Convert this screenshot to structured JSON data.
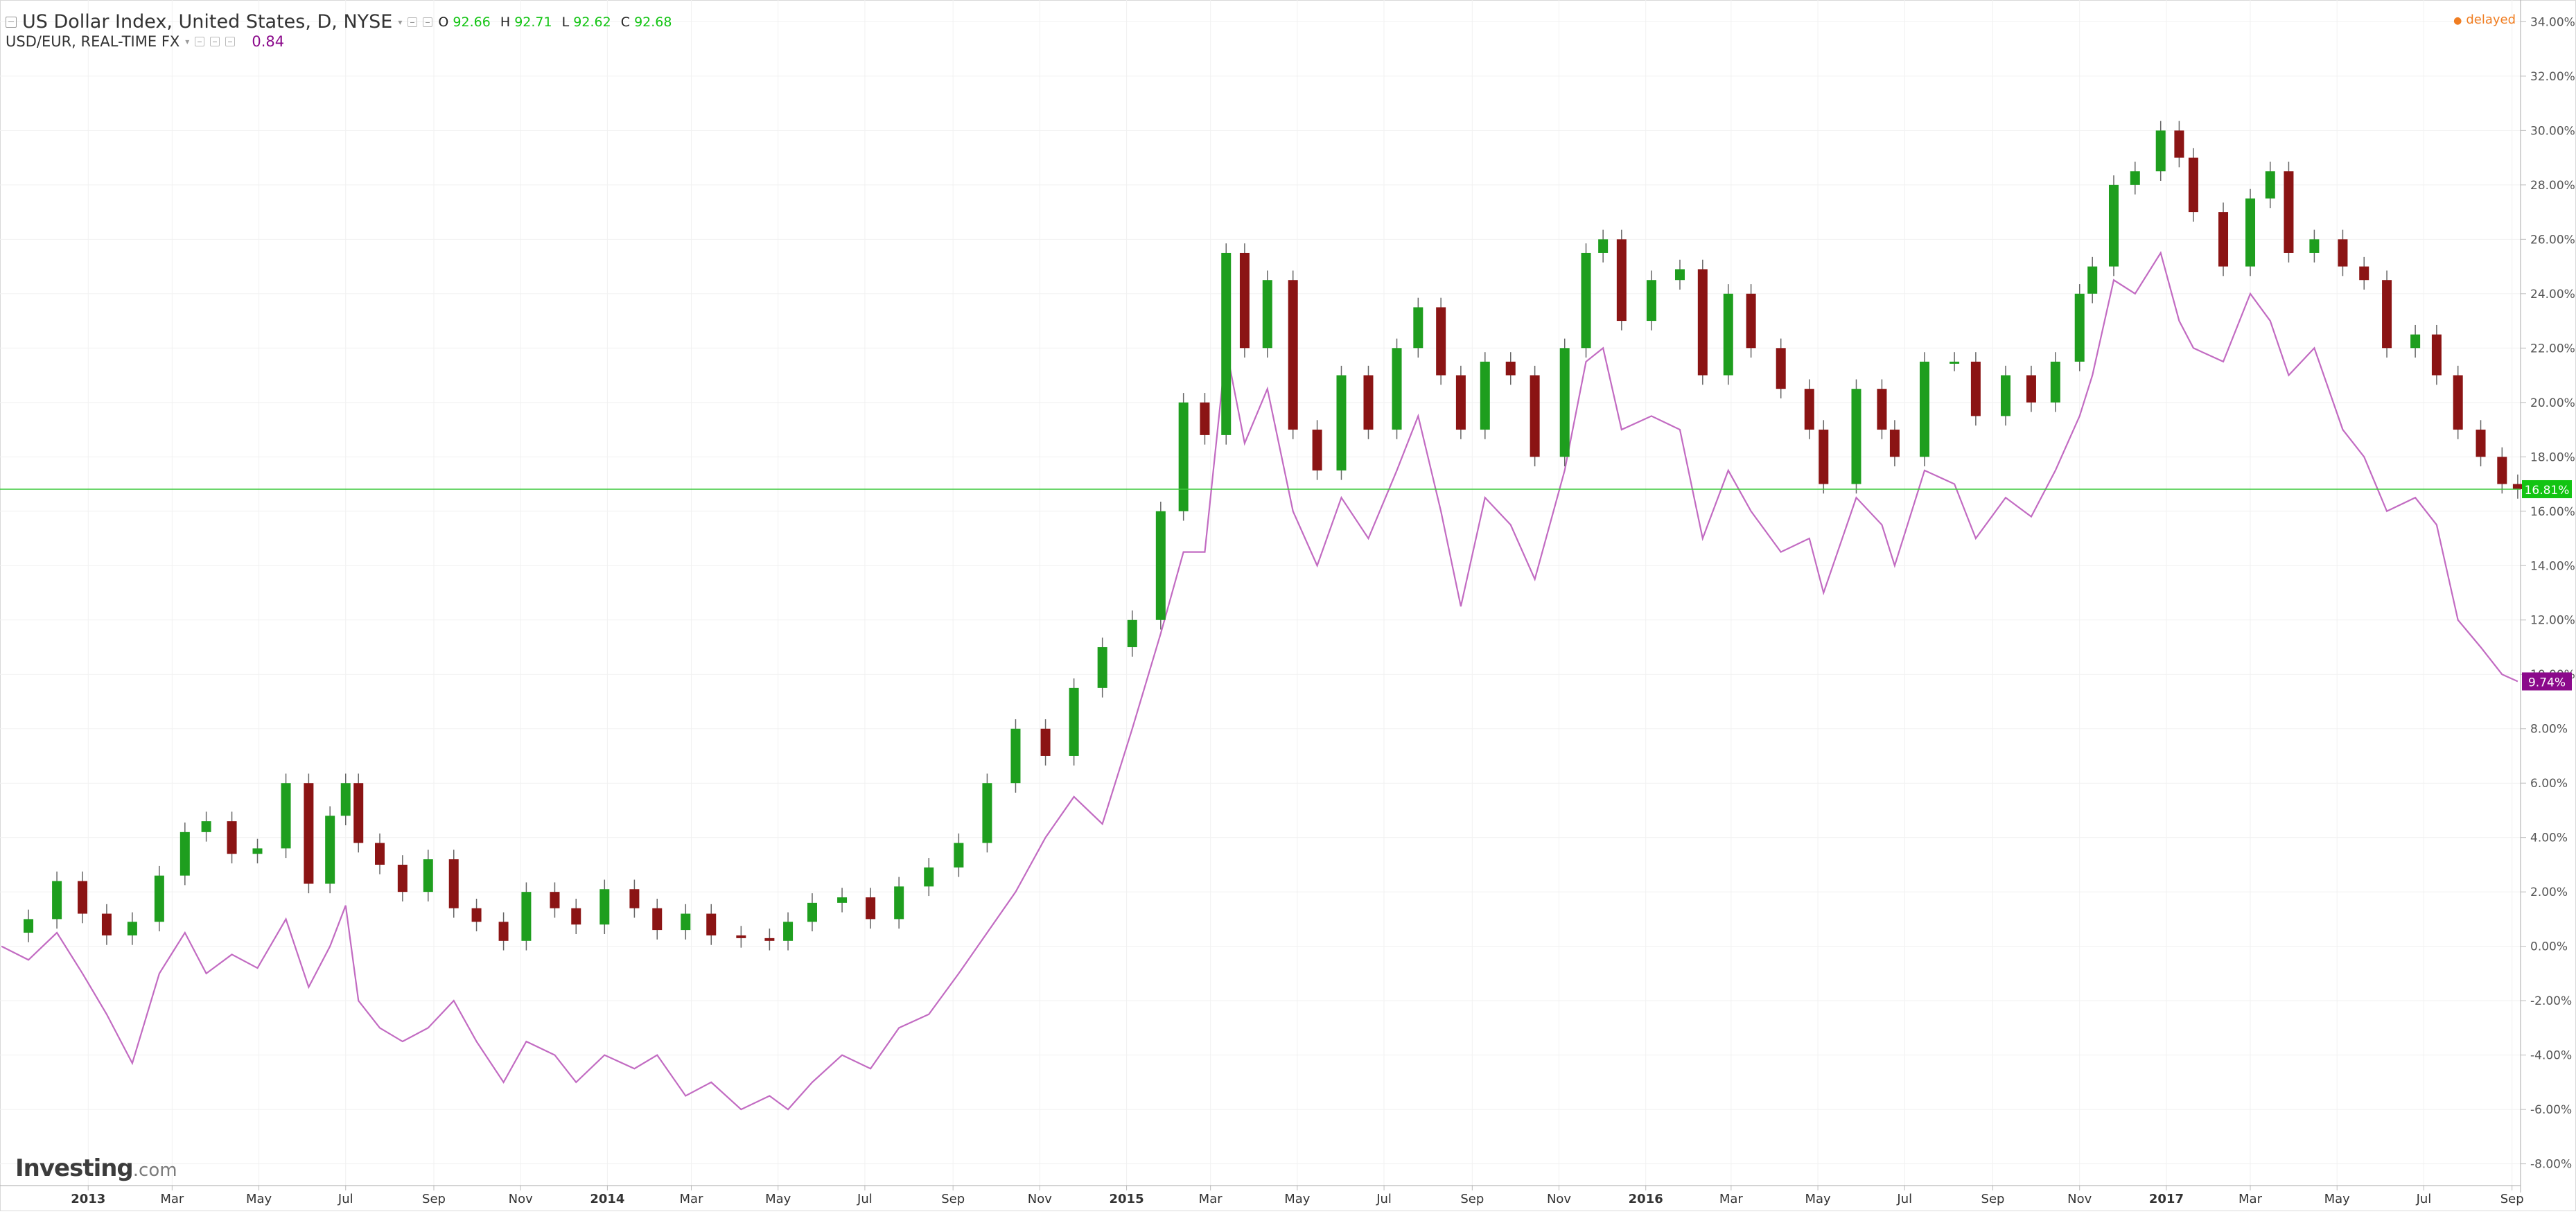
{
  "legend": {
    "main_title": "US Dollar Index, United States, D, NYSE",
    "ohlc": [
      {
        "k": "O",
        "v": "92.66"
      },
      {
        "k": "H",
        "v": "92.71"
      },
      {
        "k": "L",
        "v": "92.62"
      },
      {
        "k": "C",
        "v": "92.68"
      }
    ],
    "compare_title": "USD/EUR, REAL-TIME FX",
    "compare_value": "0.84"
  },
  "status": "delayed",
  "logo": {
    "name": "Investing",
    "suffix": ".com"
  },
  "colors": {
    "up": "#1e9e1e",
    "down": "#8b1414",
    "compare": "#c26bc2",
    "last_price_line": "#3ac83a",
    "last_price_badge": "#12c412",
    "compare_badge": "#8b0a8b"
  },
  "chart_data": {
    "type": "line",
    "title": "US Dollar Index, United States, D, NYSE",
    "x_type": "date",
    "xlim": [
      "2012-10-31",
      "2017-09-07"
    ],
    "ylim": [
      -8.8,
      34.8
    ],
    "y_unit": "%",
    "grid": true,
    "legend_position": "top-left",
    "x_ticks": [
      {
        "label": "2013",
        "date": "2013-01-01",
        "bold": true
      },
      {
        "label": "Mar",
        "date": "2013-03-01"
      },
      {
        "label": "May",
        "date": "2013-05-01"
      },
      {
        "label": "Jul",
        "date": "2013-07-01"
      },
      {
        "label": "Sep",
        "date": "2013-09-01"
      },
      {
        "label": "Nov",
        "date": "2013-11-01"
      },
      {
        "label": "2014",
        "date": "2014-01-01",
        "bold": true
      },
      {
        "label": "Mar",
        "date": "2014-03-01"
      },
      {
        "label": "May",
        "date": "2014-05-01"
      },
      {
        "label": "Jul",
        "date": "2014-07-01"
      },
      {
        "label": "Sep",
        "date": "2014-09-01"
      },
      {
        "label": "Nov",
        "date": "2014-11-01"
      },
      {
        "label": "2015",
        "date": "2015-01-01",
        "bold": true
      },
      {
        "label": "Mar",
        "date": "2015-03-01"
      },
      {
        "label": "May",
        "date": "2015-05-01"
      },
      {
        "label": "Jul",
        "date": "2015-07-01"
      },
      {
        "label": "Sep",
        "date": "2015-09-01"
      },
      {
        "label": "Nov",
        "date": "2015-11-01"
      },
      {
        "label": "2016",
        "date": "2016-01-01",
        "bold": true
      },
      {
        "label": "Mar",
        "date": "2016-03-01"
      },
      {
        "label": "May",
        "date": "2016-05-01"
      },
      {
        "label": "Jul",
        "date": "2016-07-01"
      },
      {
        "label": "Sep",
        "date": "2016-09-01"
      },
      {
        "label": "Nov",
        "date": "2016-11-01"
      },
      {
        "label": "2017",
        "date": "2017-01-01",
        "bold": true
      },
      {
        "label": "Mar",
        "date": "2017-03-01"
      },
      {
        "label": "May",
        "date": "2017-05-01"
      },
      {
        "label": "Jul",
        "date": "2017-07-01"
      },
      {
        "label": "Sep",
        "date": "2017-09-01"
      }
    ],
    "y_ticks": [
      {
        "v": 34,
        "label": "34.00%"
      },
      {
        "v": 32,
        "label": "32.00%"
      },
      {
        "v": 30,
        "label": "30.00%"
      },
      {
        "v": 28,
        "label": "28.00%"
      },
      {
        "v": 26,
        "label": "26.00%"
      },
      {
        "v": 24,
        "label": "24.00%"
      },
      {
        "v": 22,
        "label": "22.00%"
      },
      {
        "v": 20,
        "label": "20.00%"
      },
      {
        "v": 18,
        "label": "18.00%"
      },
      {
        "v": 16,
        "label": "16.00%"
      },
      {
        "v": 14,
        "label": "14.00%"
      },
      {
        "v": 12,
        "label": "12.00%"
      },
      {
        "v": 10,
        "label": "10.00%"
      },
      {
        "v": 8,
        "label": "8.00%"
      },
      {
        "v": 6,
        "label": "6.00%"
      },
      {
        "v": 4,
        "label": "4.00%"
      },
      {
        "v": 2,
        "label": "2.00%"
      },
      {
        "v": 0,
        "label": "0.00%"
      },
      {
        "v": -2,
        "label": "-2.00%"
      },
      {
        "v": -4,
        "label": "-4.00%"
      },
      {
        "v": -6,
        "label": "-6.00%"
      },
      {
        "v": -8,
        "label": "-8.00%"
      }
    ],
    "series": [
      {
        "name": "US Dollar Index, United States, D, NYSE",
        "kind": "candlestick",
        "last_label": "16.81%",
        "last_value": 16.81,
        "x": [
          "2012-11-01",
          "2012-11-20",
          "2012-12-10",
          "2012-12-28",
          "2013-01-14",
          "2013-02-01",
          "2013-02-20",
          "2013-03-10",
          "2013-03-25",
          "2013-04-12",
          "2013-04-30",
          "2013-05-20",
          "2013-06-05",
          "2013-06-20",
          "2013-07-01",
          "2013-07-10",
          "2013-07-25",
          "2013-08-10",
          "2013-08-28",
          "2013-09-15",
          "2013-10-01",
          "2013-10-20",
          "2013-11-05",
          "2013-11-25",
          "2013-12-10",
          "2013-12-30",
          "2014-01-20",
          "2014-02-05",
          "2014-02-25",
          "2014-03-15",
          "2014-04-05",
          "2014-04-25",
          "2014-05-08",
          "2014-05-25",
          "2014-06-15",
          "2014-07-05",
          "2014-07-25",
          "2014-08-15",
          "2014-09-05",
          "2014-09-25",
          "2014-10-15",
          "2014-11-05",
          "2014-11-25",
          "2014-12-15",
          "2015-01-05",
          "2015-01-25",
          "2015-02-10",
          "2015-02-25",
          "2015-03-12",
          "2015-03-25",
          "2015-04-10",
          "2015-04-28",
          "2015-05-15",
          "2015-06-01",
          "2015-06-20",
          "2015-07-10",
          "2015-07-25",
          "2015-08-10",
          "2015-08-24",
          "2015-09-10",
          "2015-09-28",
          "2015-10-15",
          "2015-11-05",
          "2015-11-20",
          "2015-12-02",
          "2015-12-15",
          "2016-01-05",
          "2016-01-25",
          "2016-02-10",
          "2016-02-28",
          "2016-03-15",
          "2016-04-05",
          "2016-04-25",
          "2016-05-05",
          "2016-05-28",
          "2016-06-15",
          "2016-06-24",
          "2016-07-15",
          "2016-08-05",
          "2016-08-20",
          "2016-09-10",
          "2016-09-28",
          "2016-10-15",
          "2016-11-01",
          "2016-11-10",
          "2016-11-25",
          "2016-12-10",
          "2016-12-28",
          "2017-01-10",
          "2017-01-20",
          "2017-02-10",
          "2017-03-01",
          "2017-03-15",
          "2017-03-28",
          "2017-04-15",
          "2017-05-05",
          "2017-05-20",
          "2017-06-05",
          "2017-06-25",
          "2017-07-10",
          "2017-07-25",
          "2017-08-10",
          "2017-08-25",
          "2017-09-05"
        ],
        "close": [
          0.5,
          1.0,
          2.4,
          1.2,
          0.4,
          0.9,
          2.6,
          4.2,
          4.6,
          3.4,
          3.6,
          6.0,
          2.3,
          4.8,
          6.0,
          3.8,
          3.0,
          2.0,
          3.2,
          1.4,
          0.9,
          0.2,
          2.0,
          1.4,
          0.8,
          2.1,
          1.4,
          0.6,
          1.2,
          0.4,
          0.3,
          0.2,
          0.9,
          1.6,
          1.8,
          1.0,
          2.2,
          2.9,
          3.8,
          6.0,
          8.0,
          7.0,
          9.5,
          11.0,
          12.0,
          16.0,
          20.0,
          18.8,
          25.5,
          22.0,
          24.5,
          19.0,
          17.5,
          21.0,
          19.0,
          22.0,
          23.5,
          21.0,
          19.0,
          21.5,
          21.0,
          18.0,
          22.0,
          25.5,
          26.0,
          23.0,
          24.5,
          24.9,
          21.0,
          24.0,
          22.0,
          20.5,
          19.0,
          17.0,
          20.5,
          19.0,
          18.0,
          21.5,
          21.5,
          19.5,
          21.0,
          20.0,
          21.5,
          24.0,
          25.0,
          28.0,
          28.5,
          30.0,
          29.0,
          27.0,
          25.0,
          27.5,
          28.5,
          25.5,
          26.0,
          25.0,
          24.5,
          22.0,
          22.5,
          21.0,
          19.0,
          18.0,
          17.0,
          16.81
        ]
      },
      {
        "name": "USD/EUR, REAL-TIME FX",
        "kind": "line",
        "last_label": "9.74%",
        "last_value": 9.74,
        "x": [
          "2012-11-01",
          "2012-11-20",
          "2012-12-10",
          "2012-12-28",
          "2013-01-14",
          "2013-02-01",
          "2013-02-20",
          "2013-03-10",
          "2013-03-25",
          "2013-04-12",
          "2013-04-30",
          "2013-05-20",
          "2013-06-05",
          "2013-06-20",
          "2013-07-01",
          "2013-07-10",
          "2013-07-25",
          "2013-08-10",
          "2013-08-28",
          "2013-09-15",
          "2013-10-01",
          "2013-10-20",
          "2013-11-05",
          "2013-11-25",
          "2013-12-10",
          "2013-12-30",
          "2014-01-20",
          "2014-02-05",
          "2014-02-25",
          "2014-03-15",
          "2014-04-05",
          "2014-04-25",
          "2014-05-08",
          "2014-05-25",
          "2014-06-15",
          "2014-07-05",
          "2014-07-25",
          "2014-08-15",
          "2014-09-05",
          "2014-09-25",
          "2014-10-15",
          "2014-11-05",
          "2014-11-25",
          "2014-12-15",
          "2015-01-05",
          "2015-01-25",
          "2015-02-10",
          "2015-02-25",
          "2015-03-12",
          "2015-03-25",
          "2015-04-10",
          "2015-04-28",
          "2015-05-15",
          "2015-06-01",
          "2015-06-20",
          "2015-07-10",
          "2015-07-25",
          "2015-08-10",
          "2015-08-24",
          "2015-09-10",
          "2015-09-28",
          "2015-10-15",
          "2015-11-05",
          "2015-11-20",
          "2015-12-02",
          "2015-12-15",
          "2016-01-05",
          "2016-01-25",
          "2016-02-10",
          "2016-02-28",
          "2016-03-15",
          "2016-04-05",
          "2016-04-25",
          "2016-05-05",
          "2016-05-28",
          "2016-06-15",
          "2016-06-24",
          "2016-07-15",
          "2016-08-05",
          "2016-08-20",
          "2016-09-10",
          "2016-09-28",
          "2016-10-15",
          "2016-11-01",
          "2016-11-10",
          "2016-11-25",
          "2016-12-10",
          "2016-12-28",
          "2017-01-10",
          "2017-01-20",
          "2017-02-10",
          "2017-03-01",
          "2017-03-15",
          "2017-03-28",
          "2017-04-15",
          "2017-05-05",
          "2017-05-20",
          "2017-06-05",
          "2017-06-25",
          "2017-07-10",
          "2017-07-25",
          "2017-08-10",
          "2017-08-25",
          "2017-09-05"
        ],
        "values": [
          0.0,
          -0.5,
          0.5,
          -1.0,
          -2.5,
          -4.3,
          -1.0,
          0.5,
          -1.0,
          -0.3,
          -0.8,
          1.0,
          -1.5,
          0.0,
          1.5,
          -2.0,
          -3.0,
          -3.5,
          -3.0,
          -2.0,
          -3.5,
          -5.0,
          -3.5,
          -4.0,
          -5.0,
          -4.0,
          -4.5,
          -4.0,
          -5.5,
          -5.0,
          -6.0,
          -5.5,
          -6.0,
          -5.0,
          -4.0,
          -4.5,
          -3.0,
          -2.5,
          -1.0,
          0.5,
          2.0,
          4.0,
          5.5,
          4.5,
          8.0,
          11.5,
          14.5,
          14.5,
          22.0,
          18.5,
          20.5,
          16.0,
          14.0,
          16.5,
          15.0,
          17.5,
          19.5,
          16.0,
          12.5,
          16.5,
          15.5,
          13.5,
          17.5,
          21.5,
          22.0,
          19.0,
          19.5,
          19.0,
          15.0,
          17.5,
          16.0,
          14.5,
          15.0,
          13.0,
          16.5,
          15.5,
          14.0,
          17.5,
          17.0,
          15.0,
          16.5,
          15.8,
          17.5,
          19.5,
          21.0,
          24.5,
          24.0,
          25.5,
          23.0,
          22.0,
          21.5,
          24.0,
          23.0,
          21.0,
          22.0,
          19.0,
          18.0,
          16.0,
          16.5,
          15.5,
          12.0,
          11.0,
          10.0,
          9.74
        ]
      }
    ]
  }
}
